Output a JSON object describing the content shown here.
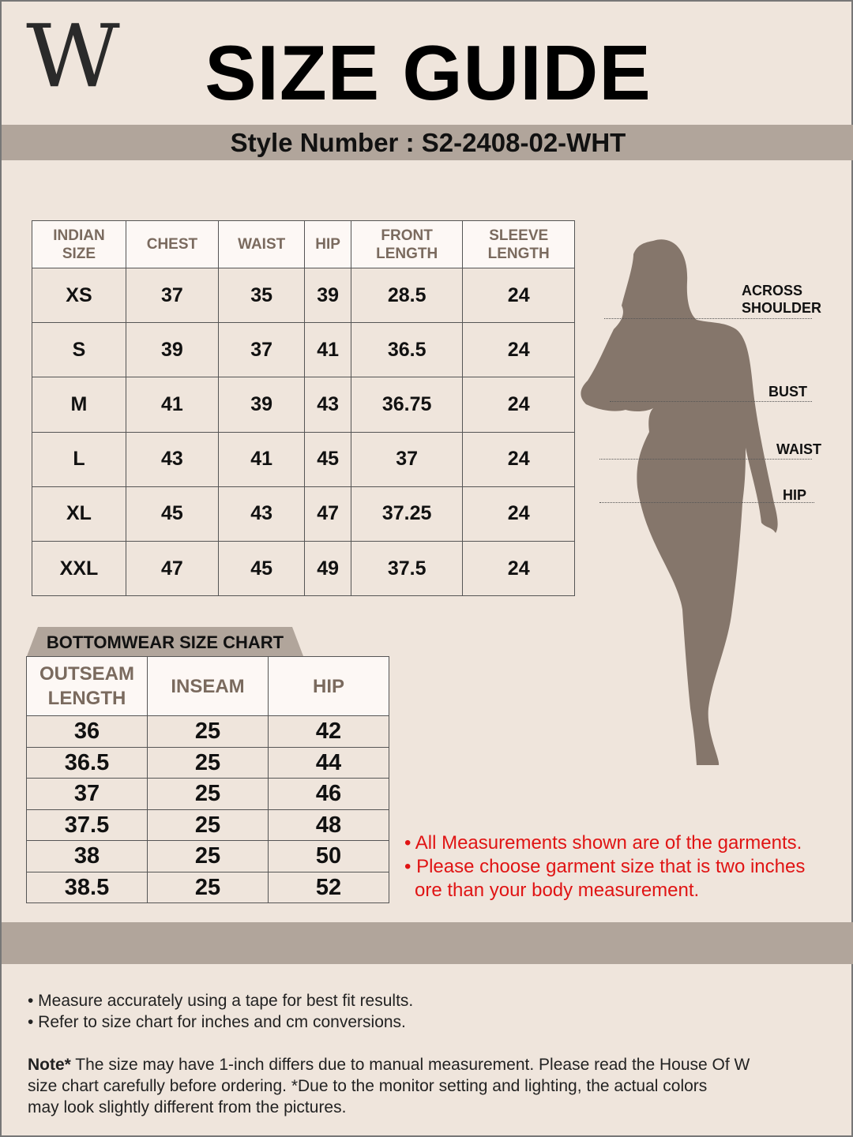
{
  "logo": "W",
  "title": "SIZE GUIDE",
  "style_number": "Style Number : S2-2408-02-WHT",
  "top_table": {
    "headers": [
      [
        "INDIAN",
        "SIZE"
      ],
      [
        "CHEST"
      ],
      [
        "WAIST"
      ],
      [
        "HIP"
      ],
      [
        "FRONT",
        "LENGTH"
      ],
      [
        "SLEEVE",
        "LENGTH"
      ]
    ],
    "rows": [
      [
        "XS",
        "37",
        "35",
        "39",
        "28.5",
        "24"
      ],
      [
        "S",
        "39",
        "37",
        "41",
        "36.5",
        "24"
      ],
      [
        "M",
        "41",
        "39",
        "43",
        "36.75",
        "24"
      ],
      [
        "L",
        "43",
        "41",
        "45",
        "37",
        "24"
      ],
      [
        "XL",
        "45",
        "43",
        "47",
        "37.25",
        "24"
      ],
      [
        "XXL",
        "47",
        "45",
        "49",
        "37.5",
        "24"
      ]
    ]
  },
  "bottom_table": {
    "title": "BOTTOMWEAR SIZE CHART",
    "headers": [
      [
        "OUTSEAM",
        "LENGTH"
      ],
      [
        "INSEAM"
      ],
      [
        "HIP"
      ]
    ],
    "rows": [
      [
        "36",
        "25",
        "42"
      ],
      [
        "36.5",
        "25",
        "44"
      ],
      [
        "37",
        "25",
        "46"
      ],
      [
        "37.5",
        "25",
        "48"
      ],
      [
        "38",
        "25",
        "50"
      ],
      [
        "38.5",
        "25",
        "52"
      ]
    ]
  },
  "figure_labels": {
    "shoulder": [
      "ACROSS",
      "SHOULDER"
    ],
    "bust": "BUST",
    "waist": "WAIST",
    "hip": "HIP"
  },
  "red_notes": [
    "• All Measurements shown are of the garments.",
    "• Please choose garment size that is two inches",
    "ore than your body measurement."
  ],
  "footer": {
    "bullets": [
      "• Measure accurately using a tape for best fit results.",
      "• Refer to size chart for inches and cm conversions."
    ],
    "note_label": "Note*",
    "note_lines": [
      " The size may have 1-inch differs due to manual measurement. Please read the House Of W",
      "size chart carefully before ordering. *Due to the monitor setting and lighting, the actual colors",
      "may look slightly different from the pictures."
    ]
  },
  "colors": {
    "background": "#efe5dc",
    "band": "#b1a59b",
    "header_text": "#7a6a5e",
    "silhouette": "#85766b",
    "red": "#e01414"
  }
}
